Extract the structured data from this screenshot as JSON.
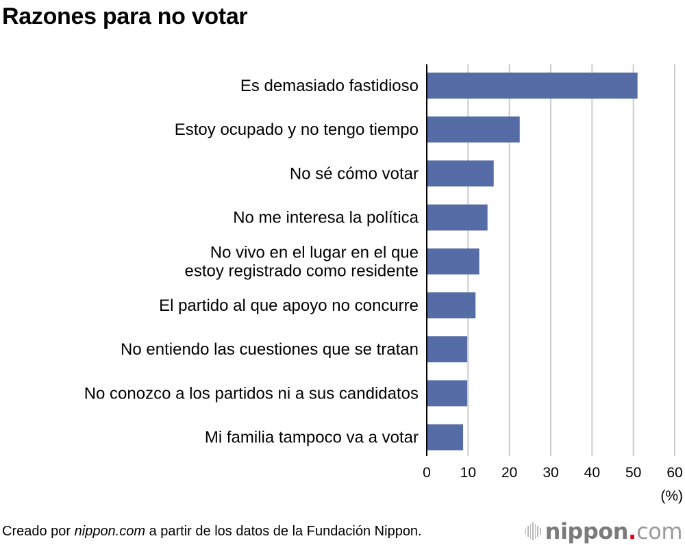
{
  "chart_data": {
    "type": "bar",
    "orientation": "horizontal",
    "title": "Razones para no votar",
    "categories": [
      [
        "Es demasiado fastidioso"
      ],
      [
        "Estoy ocupado y no tengo tiempo"
      ],
      [
        "No sé cómo votar"
      ],
      [
        "No me interesa la política"
      ],
      [
        "No vivo en el lugar en el que",
        "estoy registrado como residente"
      ],
      [
        "El partido al que apoyo no concurre"
      ],
      [
        "No entiendo las cuestiones que se tratan"
      ],
      [
        "No conozco a los partidos ni a sus candidatos"
      ],
      [
        "Mi familia tampoco va a votar"
      ]
    ],
    "values": [
      51.0,
      22.5,
      16.2,
      14.7,
      12.7,
      11.8,
      9.8,
      9.8,
      8.8
    ],
    "xlabel": "",
    "ylabel": "",
    "unit_label": "(%)",
    "xlim": [
      0,
      60
    ],
    "xticks": [
      0,
      10,
      20,
      30,
      40,
      50,
      60
    ],
    "grid": true,
    "legend": "none",
    "bar_color": "#566ca6",
    "grid_color": "#cccccc"
  },
  "footer": {
    "prefix": "Creado por ",
    "source_italic": "nippon.com",
    "suffix": " a partir de los datos de la Fundación Nippon."
  },
  "logo": {
    "word": "nippon",
    "dot": ".",
    "tld": "com",
    "dot_color": "#e60012"
  }
}
